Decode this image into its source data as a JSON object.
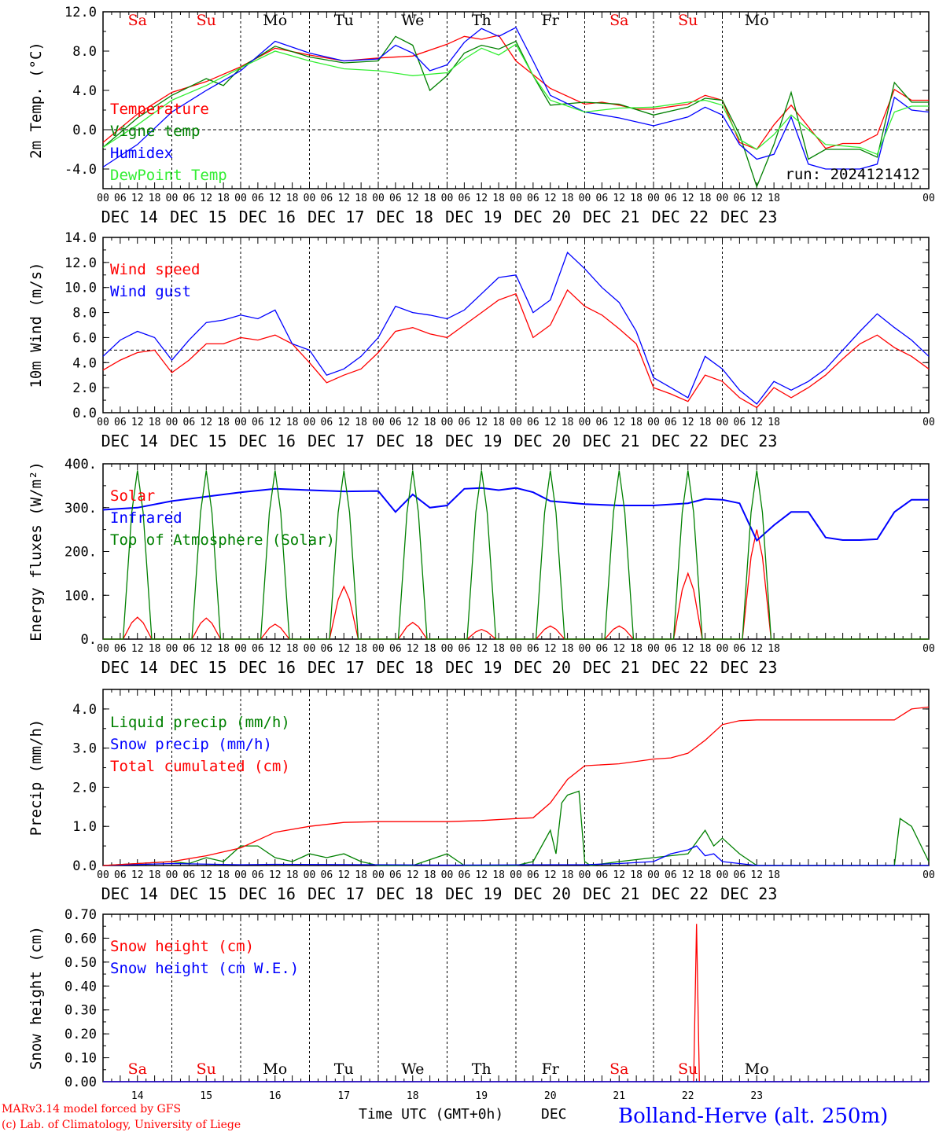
{
  "colors": {
    "red": "#ff0000",
    "green": "#008000",
    "blue": "#0000ff",
    "lightgreen": "#33ee33",
    "brown": "#996600",
    "black": "#000000",
    "weekend": "#ee0000"
  },
  "days": [
    "Sa",
    "Su",
    "Mo",
    "Tu",
    "We",
    "Th",
    "Fr",
    "Sa",
    "Su",
    "Mo"
  ],
  "weekend_flags": [
    true,
    true,
    false,
    false,
    false,
    false,
    false,
    true,
    true,
    false
  ],
  "date_labels": [
    "DEC 14",
    "DEC 15",
    "DEC 16",
    "DEC 17",
    "DEC 18",
    "DEC 19",
    "DEC 20",
    "DEC 21",
    "DEC 22",
    "DEC 23"
  ],
  "hour_labels": [
    "00",
    "06",
    "12",
    "18"
  ],
  "hour_end": "00",
  "bottom": {
    "day_numbers": [
      "14",
      "15",
      "16",
      "17",
      "18",
      "19",
      "20",
      "21",
      "22",
      "23"
    ],
    "xlabel": "Time UTC (GMT+0h)",
    "month": "DEC",
    "credit1": "MARv3.14 model forced by GFS",
    "credit2": "(c) Lab. of Climatology, University of Liege",
    "station": "Bolland-Herve (alt. 250m)"
  },
  "chart_data": [
    {
      "type": "line",
      "ylabel": "2m Temp. (°C)",
      "ylim": [
        -6,
        12
      ],
      "yticks": [
        "-4.0",
        "0.0",
        "4.0",
        "8.0",
        "12.0"
      ],
      "ytick_values": [
        -4,
        0,
        4,
        8,
        12
      ],
      "dashed_y": 0,
      "run_label": "run: 2024121412",
      "series": [
        {
          "name": "Temperature",
          "color": "#ff0000",
          "t": [
            0,
            12,
            24,
            36,
            48,
            60,
            72,
            84,
            96,
            108,
            120,
            126,
            132,
            138,
            144,
            156,
            168,
            174,
            180,
            186,
            192,
            204,
            210,
            216,
            222,
            228,
            234,
            240,
            252,
            258,
            264,
            270,
            276,
            282,
            288
          ],
          "values": [
            -1.3,
            1.6,
            3.8,
            4.9,
            6.4,
            8.3,
            7.6,
            7.0,
            7.3,
            7.5,
            8.7,
            9.5,
            9.2,
            9.6,
            7.0,
            4.2,
            2.6,
            2.8,
            2.5,
            2.1,
            2.1,
            2.6,
            3.5,
            3.0,
            -1.3,
            -2.0,
            0.5,
            2.5,
            -1.9,
            -1.4,
            -1.4,
            -0.5,
            4.1,
            3.0,
            3.0
          ]
        },
        {
          "name": "Vigne temp",
          "color": "#008000",
          "t": [
            0,
            12,
            24,
            36,
            42,
            48,
            60,
            72,
            84,
            96,
            102,
            108,
            114,
            120,
            126,
            132,
            138,
            144,
            150,
            156,
            168,
            180,
            192,
            204,
            210,
            216,
            222,
            228,
            234,
            240,
            246,
            252,
            264,
            270,
            276,
            282,
            288
          ],
          "values": [
            -1.8,
            1.2,
            3.5,
            5.2,
            4.5,
            6.3,
            8.5,
            7.4,
            6.8,
            7.0,
            9.5,
            8.6,
            4.0,
            5.5,
            7.8,
            8.6,
            8.2,
            9.0,
            5.5,
            2.5,
            2.8,
            2.6,
            1.5,
            2.3,
            3.2,
            3.0,
            -0.5,
            -5.8,
            -1.5,
            3.8,
            -3.0,
            -2.0,
            -2.0,
            -2.8,
            4.8,
            2.8,
            2.8
          ]
        },
        {
          "name": "Humidex",
          "color": "#0000ff",
          "t": [
            0,
            12,
            24,
            36,
            48,
            60,
            72,
            84,
            96,
            102,
            108,
            114,
            120,
            126,
            132,
            138,
            144,
            150,
            156,
            168,
            180,
            192,
            204,
            210,
            216,
            222,
            228,
            234,
            240,
            246,
            252,
            264,
            270,
            276,
            282,
            288
          ],
          "values": [
            -3.8,
            -1.5,
            1.8,
            4.0,
            6.0,
            9.0,
            7.8,
            7.0,
            7.2,
            8.6,
            7.8,
            6.0,
            6.6,
            8.9,
            10.3,
            9.5,
            10.4,
            7.0,
            3.5,
            1.8,
            1.2,
            0.4,
            1.3,
            2.3,
            1.5,
            -1.5,
            -3.0,
            -2.5,
            1.3,
            -3.5,
            -4.0,
            -4.0,
            -3.5,
            3.3,
            2.0,
            1.8
          ]
        },
        {
          "name": "DewPoint Temp",
          "color": "#33ee33",
          "t": [
            0,
            12,
            24,
            36,
            48,
            60,
            72,
            84,
            96,
            108,
            120,
            126,
            132,
            138,
            144,
            150,
            156,
            168,
            180,
            192,
            204,
            210,
            216,
            222,
            228,
            234,
            240,
            252,
            264,
            270,
            276,
            282,
            288
          ],
          "values": [
            -1.8,
            0.5,
            3.0,
            4.5,
            6.3,
            8.0,
            7.0,
            6.2,
            6.0,
            5.5,
            5.8,
            7.2,
            8.3,
            7.6,
            8.7,
            5.5,
            3.0,
            1.8,
            2.2,
            2.3,
            2.8,
            3.0,
            2.5,
            -1.0,
            -2.0,
            -0.5,
            1.5,
            -1.5,
            -1.8,
            -2.5,
            1.8,
            2.4,
            2.4
          ]
        }
      ]
    },
    {
      "type": "line",
      "ylabel": "10m Wind (m/s)",
      "ylim": [
        0,
        14
      ],
      "yticks": [
        "0.0",
        "2.0",
        "4.0",
        "6.0",
        "8.0",
        "10.0",
        "12.0",
        "14.0"
      ],
      "ytick_values": [
        0,
        2,
        4,
        6,
        8,
        10,
        12,
        14
      ],
      "dashed_y": 5,
      "series": [
        {
          "name": "Wind speed",
          "color": "#ff0000",
          "t": [
            0,
            6,
            12,
            18,
            24,
            30,
            36,
            42,
            48,
            54,
            60,
            66,
            72,
            78,
            84,
            90,
            96,
            102,
            108,
            114,
            120,
            126,
            132,
            138,
            144,
            150,
            156,
            162,
            168,
            174,
            180,
            186,
            192,
            198,
            204,
            210,
            216,
            222,
            228,
            234,
            240,
            246,
            252,
            258,
            264,
            270,
            276,
            282,
            288
          ],
          "values": [
            3.4,
            4.2,
            4.8,
            5.0,
            3.2,
            4.2,
            5.5,
            5.5,
            6.0,
            5.8,
            6.2,
            5.5,
            4.0,
            2.4,
            3.0,
            3.5,
            4.8,
            6.5,
            6.8,
            6.3,
            6.0,
            7.0,
            8.0,
            9.0,
            9.5,
            6.0,
            7.0,
            9.8,
            8.5,
            7.8,
            6.7,
            5.5,
            2.0,
            1.5,
            0.9,
            3.0,
            2.5,
            1.2,
            0.4,
            2.0,
            1.2,
            2.0,
            3.0,
            4.3,
            5.5,
            6.2,
            5.2,
            4.5,
            3.5
          ]
        },
        {
          "name": "Wind gust",
          "color": "#0000ff",
          "t": [
            0,
            6,
            12,
            18,
            24,
            30,
            36,
            42,
            48,
            54,
            60,
            66,
            72,
            78,
            84,
            90,
            96,
            102,
            108,
            114,
            120,
            126,
            132,
            138,
            144,
            150,
            156,
            162,
            168,
            174,
            180,
            186,
            192,
            198,
            204,
            210,
            216,
            222,
            228,
            234,
            240,
            246,
            252,
            258,
            264,
            270,
            276,
            282,
            288
          ],
          "values": [
            4.5,
            5.8,
            6.5,
            6.0,
            4.2,
            5.8,
            7.2,
            7.4,
            7.8,
            7.5,
            8.2,
            5.5,
            5.0,
            3.0,
            3.5,
            4.5,
            6.0,
            8.5,
            8.0,
            7.8,
            7.5,
            8.2,
            9.5,
            10.8,
            11.0,
            8.0,
            9.0,
            12.8,
            11.5,
            10.0,
            8.8,
            6.5,
            2.8,
            2.0,
            1.2,
            4.5,
            3.5,
            1.8,
            0.7,
            2.5,
            1.8,
            2.5,
            3.5,
            5.0,
            6.5,
            7.9,
            6.8,
            5.8,
            4.5
          ]
        }
      ]
    },
    {
      "type": "line",
      "ylabel": "Energy fluxes (W/m²)",
      "ylim": [
        0,
        400
      ],
      "yticks": [
        "0.",
        "100.",
        "200.",
        "300.",
        "400."
      ],
      "ytick_values": [
        0,
        100,
        200,
        300,
        400
      ],
      "series": [
        {
          "name": "Solar",
          "color": "#ff0000",
          "kind": "daily",
          "peaks": [
            50,
            48,
            34,
            120,
            38,
            22,
            30,
            30,
            150,
            250
          ]
        },
        {
          "name": "Infrared",
          "color": "#0000ff",
          "t": [
            0,
            12,
            24,
            36,
            48,
            60,
            72,
            84,
            96,
            102,
            108,
            114,
            120,
            126,
            132,
            138,
            144,
            150,
            156,
            168,
            180,
            192,
            204,
            210,
            216,
            222,
            228,
            234,
            240,
            246,
            252,
            258,
            264,
            270,
            276,
            282,
            288
          ],
          "values": [
            295,
            300,
            315,
            325,
            335,
            343,
            340,
            337,
            338,
            290,
            330,
            300,
            305,
            343,
            345,
            340,
            345,
            335,
            315,
            308,
            305,
            305,
            310,
            320,
            318,
            310,
            225,
            260,
            290,
            290,
            232,
            226,
            226,
            228,
            290,
            318,
            318
          ]
        },
        {
          "name": "Top of Atmosphere (Solar)",
          "color": "#008000",
          "kind": "daily",
          "peaks": [
            385,
            385,
            385,
            385,
            385,
            385,
            385,
            385,
            385,
            385
          ]
        }
      ]
    },
    {
      "type": "line",
      "ylabel": "Precip (mm/h)",
      "ylim": [
        0,
        4.5
      ],
      "yticks": [
        "0.0",
        "1.0",
        "2.0",
        "3.0",
        "4.0"
      ],
      "ytick_values": [
        0,
        1,
        2,
        3,
        4
      ],
      "series": [
        {
          "name": "Liquid precip (mm/h)",
          "color": "#008000",
          "t": [
            0,
            24,
            30,
            36,
            42,
            48,
            54,
            60,
            66,
            72,
            78,
            84,
            90,
            96,
            108,
            120,
            126,
            132,
            138,
            144,
            150,
            156,
            158,
            160,
            162,
            166,
            168,
            170,
            180,
            192,
            204,
            210,
            213,
            216,
            222,
            228,
            240,
            276,
            278,
            282,
            288
          ],
          "values": [
            0,
            0.1,
            0.05,
            0.2,
            0.1,
            0.5,
            0.5,
            0.2,
            0.1,
            0.3,
            0.2,
            0.3,
            0.1,
            0,
            0,
            0.3,
            0,
            0,
            0,
            0,
            0.1,
            0.9,
            0.3,
            1.6,
            1.8,
            1.9,
            0.1,
            0,
            0.1,
            0.2,
            0.3,
            0.9,
            0.5,
            0.7,
            0.3,
            0,
            0,
            0,
            1.2,
            1.0,
            0.1
          ]
        },
        {
          "name": "Snow precip (mm/h)",
          "color": "#0000ff",
          "t": [
            0,
            24,
            48,
            60,
            96,
            120,
            156,
            168,
            180,
            192,
            198,
            204,
            207,
            210,
            213,
            216,
            222,
            228,
            240,
            288
          ],
          "values": [
            0,
            0.05,
            0.02,
            0.03,
            0.02,
            0.01,
            0.02,
            0.02,
            0.05,
            0.1,
            0.3,
            0.4,
            0.5,
            0.25,
            0.3,
            0.1,
            0.05,
            0,
            0,
            0
          ]
        },
        {
          "name": "Total cumulated (cm)",
          "color": "#ff0000",
          "t": [
            0,
            24,
            36,
            48,
            60,
            72,
            84,
            96,
            108,
            120,
            132,
            144,
            150,
            156,
            162,
            168,
            180,
            192,
            198,
            204,
            210,
            216,
            222,
            228,
            240,
            252,
            264,
            276,
            282,
            288
          ],
          "values": [
            0,
            0.1,
            0.25,
            0.45,
            0.85,
            1.0,
            1.1,
            1.12,
            1.12,
            1.12,
            1.15,
            1.2,
            1.22,
            1.6,
            2.2,
            2.55,
            2.6,
            2.72,
            2.75,
            2.87,
            3.2,
            3.6,
            3.7,
            3.72,
            3.72,
            3.72,
            3.72,
            3.72,
            4.0,
            4.05
          ]
        }
      ]
    },
    {
      "type": "line",
      "ylabel": "Snow height (cm)",
      "ylim": [
        0,
        0.7
      ],
      "yticks": [
        "0.00",
        "0.10",
        "0.20",
        "0.30",
        "0.40",
        "0.50",
        "0.60",
        "0.70"
      ],
      "ytick_values": [
        0,
        0.1,
        0.2,
        0.3,
        0.4,
        0.5,
        0.6,
        0.7
      ],
      "series": [
        {
          "name": "Snow height (cm)",
          "color": "#ff0000",
          "t": [
            0,
            204,
            206,
            207,
            208,
            210,
            288
          ],
          "values": [
            0,
            0,
            0,
            0.66,
            0,
            0,
            0
          ]
        },
        {
          "name": "Snow height (cm W.E.)",
          "color": "#0000ff",
          "t": [
            0,
            288
          ],
          "values": [
            0,
            0
          ]
        }
      ]
    }
  ]
}
